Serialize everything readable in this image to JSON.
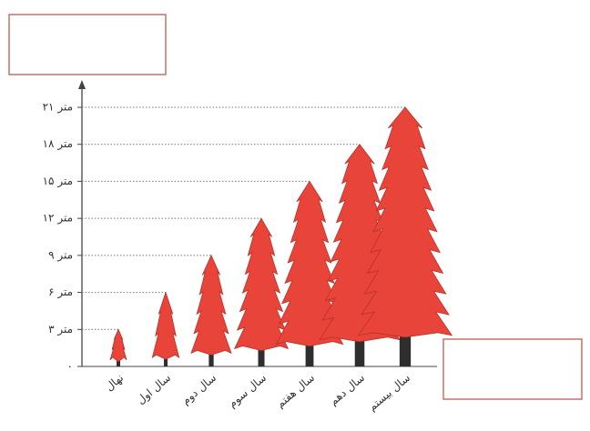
{
  "chart_data": {
    "type": "pictograph",
    "categories": [
      "نهال",
      "سال اول",
      "سال دوم",
      "سال سوم",
      "سال هفتم",
      "سال دهم",
      "سال بیستم"
    ],
    "values": [
      3,
      6,
      9,
      12,
      15,
      18,
      21
    ],
    "color": "#e8443a",
    "ylim": [
      0,
      21
    ],
    "yticks": [
      {
        "value": 0,
        "label": "۰"
      },
      {
        "value": 3,
        "label": "۳ متر"
      },
      {
        "value": 6,
        "label": "۶ متر"
      },
      {
        "value": 9,
        "label": "۹ متر"
      },
      {
        "value": 12,
        "label": "۱۲ متر"
      },
      {
        "value": 15,
        "label": "۱۵ متر"
      },
      {
        "value": 18,
        "label": "۱۸ متر"
      },
      {
        "value": 21,
        "label": "۲۱ متر"
      }
    ]
  }
}
